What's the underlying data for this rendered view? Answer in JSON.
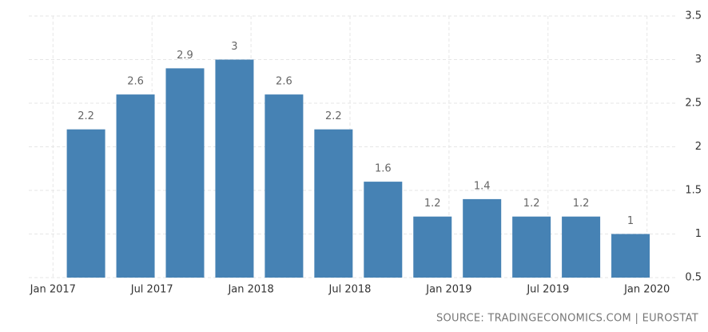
{
  "chart_data": {
    "type": "bar",
    "x": [
      "2017-03",
      "2017-06",
      "2017-09",
      "2017-12",
      "2018-03",
      "2018-06",
      "2018-09",
      "2018-12",
      "2019-03",
      "2019-06",
      "2019-09",
      "2019-12"
    ],
    "values": [
      2.2,
      2.6,
      2.9,
      3,
      2.6,
      2.2,
      1.6,
      1.2,
      1.4,
      1.2,
      1.2,
      1
    ],
    "value_labels": [
      "2.2",
      "2.6",
      "2.9",
      "3",
      "2.6",
      "2.2",
      "1.6",
      "1.2",
      "1.4",
      "1.2",
      "1.2",
      "1"
    ],
    "color": "#4682b4",
    "xlim": [
      "2016-11",
      "2020-03"
    ],
    "xticks": [
      {
        "value": "2017-01",
        "label": "Jan 2017"
      },
      {
        "value": "2017-07",
        "label": "Jul 2017"
      },
      {
        "value": "2018-01",
        "label": "Jan 2018"
      },
      {
        "value": "2018-07",
        "label": "Jul 2018"
      },
      {
        "value": "2019-01",
        "label": "Jan 2019"
      },
      {
        "value": "2019-07",
        "label": "Jul 2019"
      },
      {
        "value": "2020-01",
        "label": "Jan 2020"
      }
    ],
    "ylim": [
      0.5,
      3.5
    ],
    "yticks": [
      0.5,
      1,
      1.5,
      2,
      2.5,
      3,
      3.5
    ],
    "grid": true,
    "source": "SOURCE: TRADINGECONOMICS.COM | EUROSTAT"
  }
}
